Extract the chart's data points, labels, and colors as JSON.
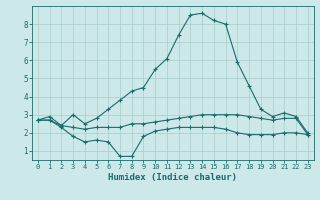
{
  "xlabel": "Humidex (Indice chaleur)",
  "ylabel": "",
  "bg_color": "#cce8e8",
  "line_color": "#1a6b6b",
  "grid_color": "#aacccc",
  "xlim": [
    -0.5,
    23.5
  ],
  "ylim": [
    0.5,
    9.0
  ],
  "xticks": [
    0,
    1,
    2,
    3,
    4,
    5,
    6,
    7,
    8,
    9,
    10,
    11,
    12,
    13,
    14,
    15,
    16,
    17,
    18,
    19,
    20,
    21,
    22,
    23
  ],
  "yticks": [
    1,
    2,
    3,
    4,
    5,
    6,
    7,
    8
  ],
  "line1_x": [
    0,
    1,
    2,
    3,
    4,
    5,
    6,
    7,
    8,
    9,
    10,
    11,
    12,
    13,
    14,
    15,
    16,
    17,
    18,
    19,
    20,
    21,
    22,
    23
  ],
  "line1_y": [
    2.7,
    2.9,
    2.4,
    3.0,
    2.5,
    2.8,
    3.3,
    3.8,
    4.3,
    4.5,
    5.5,
    6.1,
    7.4,
    8.5,
    8.6,
    8.2,
    8.0,
    5.9,
    4.6,
    3.3,
    2.9,
    3.1,
    2.9,
    2.0
  ],
  "line2_x": [
    0,
    1,
    2,
    3,
    4,
    5,
    6,
    7,
    8,
    9,
    10,
    11,
    12,
    13,
    14,
    15,
    16,
    17,
    18,
    19,
    20,
    21,
    22,
    23
  ],
  "line2_y": [
    2.7,
    2.7,
    2.4,
    2.3,
    2.2,
    2.3,
    2.3,
    2.3,
    2.5,
    2.5,
    2.6,
    2.7,
    2.8,
    2.9,
    3.0,
    3.0,
    3.0,
    3.0,
    2.9,
    2.8,
    2.7,
    2.8,
    2.8,
    1.9
  ],
  "line3_x": [
    0,
    1,
    2,
    3,
    4,
    5,
    6,
    7,
    8,
    9,
    10,
    11,
    12,
    13,
    14,
    15,
    16,
    17,
    18,
    19,
    20,
    21,
    22,
    23
  ],
  "line3_y": [
    2.7,
    2.7,
    2.3,
    1.8,
    1.5,
    1.6,
    1.5,
    0.7,
    0.7,
    1.8,
    2.1,
    2.2,
    2.3,
    2.3,
    2.3,
    2.3,
    2.2,
    2.0,
    1.9,
    1.9,
    1.9,
    2.0,
    2.0,
    1.9
  ]
}
